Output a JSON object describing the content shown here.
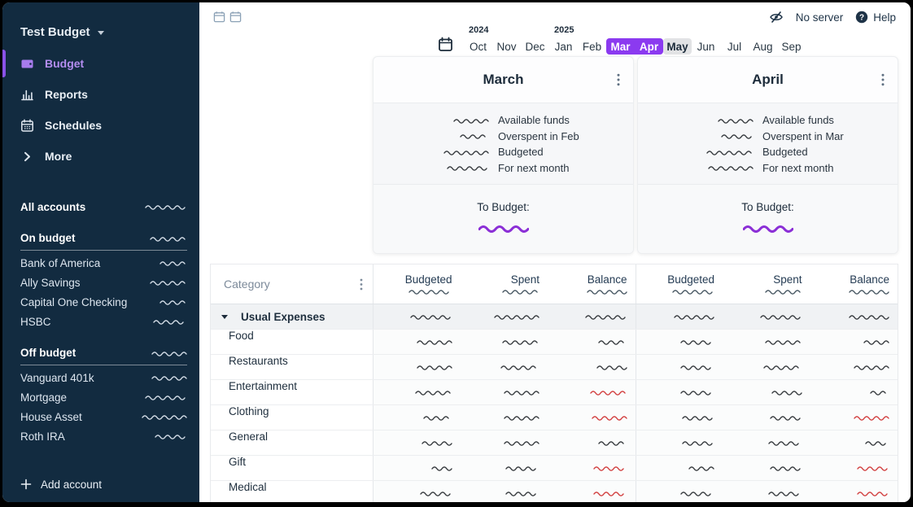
{
  "colors": {
    "sidebar_bg": "#122b40",
    "accent_purple": "#8b3af0",
    "purple_squiggle": "#8b2fd6",
    "negative_red": "#d13b3b",
    "ink_dark": "#33373b",
    "sidebar_squiggle": "#d6dfe9",
    "header_squiggle": "#44545f"
  },
  "sidebar": {
    "title": "Test Budget",
    "nav": [
      {
        "label": "Budget",
        "icon": "wallet-icon",
        "active": true
      },
      {
        "label": "Reports",
        "icon": "bar-chart-icon",
        "active": false
      },
      {
        "label": "Schedules",
        "icon": "calendar-icon",
        "active": false
      },
      {
        "label": "More",
        "icon": "chevron-right-icon",
        "active": false
      }
    ],
    "all_accounts": {
      "label": "All accounts",
      "mask_w": 52
    },
    "groups": [
      {
        "label": "On budget",
        "mask_w": 46,
        "accounts": [
          {
            "name": "Bank of America",
            "mask_w": 34
          },
          {
            "name": "Ally Savings",
            "mask_w": 46
          },
          {
            "name": "Capital One Checking",
            "mask_w": 34
          },
          {
            "name": "HSBC",
            "mask_w": 42
          }
        ]
      },
      {
        "label": "Off budget",
        "mask_w": 44,
        "accounts": [
          {
            "name": "Vanguard 401k",
            "mask_w": 44
          },
          {
            "name": "Mortgage",
            "mask_w": 52
          },
          {
            "name": "House Asset",
            "mask_w": 56
          },
          {
            "name": "Roth IRA",
            "mask_w": 40
          }
        ]
      }
    ],
    "add_account": "Add account"
  },
  "topbar": {
    "server_status": "No server",
    "help": "Help"
  },
  "month_nav": {
    "months": [
      {
        "label": "Oct",
        "year": "2024"
      },
      {
        "label": "Nov"
      },
      {
        "label": "Dec"
      },
      {
        "label": "Jan",
        "year": "2025"
      },
      {
        "label": "Feb"
      },
      {
        "label": "Mar",
        "state": "selected"
      },
      {
        "label": "Apr",
        "state": "selected"
      },
      {
        "label": "May",
        "state": "adjacent"
      },
      {
        "label": "Jun"
      },
      {
        "label": "Jul"
      },
      {
        "label": "Aug"
      },
      {
        "label": "Sep"
      }
    ]
  },
  "cards": [
    {
      "title": "March",
      "summary": [
        {
          "mask_w": 44,
          "label": "Available funds"
        },
        {
          "mask_w": 36,
          "label": "Overspent in Feb"
        },
        {
          "mask_w": 56,
          "label": "Budgeted"
        },
        {
          "mask_w": 52,
          "label": "For next month"
        }
      ],
      "to_budget_label": "To Budget:",
      "to_budget_mask_w": 62
    },
    {
      "title": "April",
      "summary": [
        {
          "mask_w": 44,
          "label": "Available funds"
        },
        {
          "mask_w": 40,
          "label": "Overspent in Mar"
        },
        {
          "mask_w": 58,
          "label": "Budgeted"
        },
        {
          "mask_w": 56,
          "label": "For next month"
        }
      ],
      "to_budget_label": "To Budget:",
      "to_budget_mask_w": 62
    }
  ],
  "table": {
    "category_header": "Category",
    "columns": [
      "Budgeted",
      "Spent",
      "Balance"
    ],
    "totals_masks": [
      [
        54,
        46,
        50
      ],
      [
        52,
        46,
        50
      ]
    ],
    "groups": [
      {
        "name": "Usual Expenses",
        "expanded": true,
        "masks": [
          52,
          56,
          52,
          50,
          52,
          50
        ],
        "rows": [
          {
            "name": "Food",
            "masks": [
              44,
              46,
              36,
              42,
              46,
              32
            ],
            "neg": []
          },
          {
            "name": "Restaurants",
            "masks": [
              44,
              48,
              38,
              42,
              48,
              44
            ],
            "neg": []
          },
          {
            "name": "Entertainment",
            "masks": [
              46,
              44,
              46,
              42,
              38,
              24
            ],
            "neg": [
              2
            ]
          },
          {
            "name": "Clothing",
            "masks": [
              36,
              44,
              44,
              40,
              40,
              44
            ],
            "neg": [
              2,
              5
            ]
          },
          {
            "name": "General",
            "masks": [
              38,
              44,
              36,
              40,
              42,
              30
            ],
            "neg": []
          },
          {
            "name": "Gift",
            "masks": [
              26,
              42,
              42,
              32,
              40,
              40
            ],
            "neg": [
              2,
              5
            ]
          },
          {
            "name": "Medical",
            "masks": [
              40,
              42,
              42,
              42,
              42,
              40
            ],
            "neg": [
              2,
              5
            ]
          }
        ]
      }
    ]
  }
}
